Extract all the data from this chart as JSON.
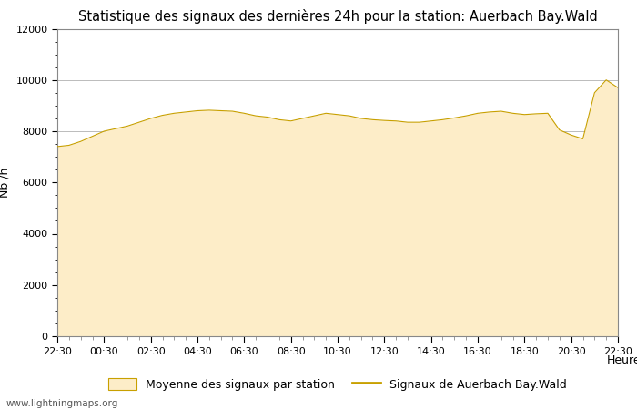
{
  "title": "Statistique des signaux des dernières 24h pour la station: Auerbach Bay.Wald",
  "xlabel": "Heure",
  "ylabel": "Nb /h",
  "ylim": [
    0,
    12000
  ],
  "yticks": [
    0,
    2000,
    4000,
    6000,
    8000,
    10000,
    12000
  ],
  "xtick_labels": [
    "22:30",
    "00:30",
    "02:30",
    "04:30",
    "06:30",
    "08:30",
    "10:30",
    "12:30",
    "14:30",
    "16:30",
    "18:30",
    "20:30",
    "22:30"
  ],
  "fill_color": "#FDEDC8",
  "line_color": "#C8A000",
  "background_color": "#ffffff",
  "grid_color": "#bbbbbb",
  "watermark": "www.lightningmaps.org",
  "legend_fill_label": "Moyenne des signaux par station",
  "legend_line_label": "Signaux de Auerbach Bay.Wald",
  "x_values": [
    0,
    0.5,
    1,
    1.5,
    2,
    2.5,
    3,
    3.5,
    4,
    4.5,
    5,
    5.5,
    6,
    6.5,
    7,
    7.5,
    8,
    8.5,
    9,
    9.5,
    10,
    10.5,
    11,
    11.5,
    12,
    12.5,
    13,
    13.5,
    14,
    14.5,
    15,
    15.5,
    16,
    16.5,
    17,
    17.5,
    18,
    18.5,
    19,
    19.5,
    20,
    20.5,
    21,
    21.5,
    22,
    22.5,
    23,
    23.5,
    24
  ],
  "y_values": [
    7400,
    7450,
    7600,
    7800,
    8000,
    8100,
    8200,
    8350,
    8500,
    8620,
    8700,
    8750,
    8800,
    8820,
    8800,
    8780,
    8700,
    8600,
    8550,
    8450,
    8400,
    8500,
    8600,
    8700,
    8650,
    8600,
    8500,
    8450,
    8420,
    8400,
    8350,
    8350,
    8400,
    8450,
    8520,
    8600,
    8700,
    8750,
    8780,
    8700,
    8650,
    8680,
    8700,
    8050,
    7850,
    7700,
    9500,
    10000,
    9700
  ]
}
